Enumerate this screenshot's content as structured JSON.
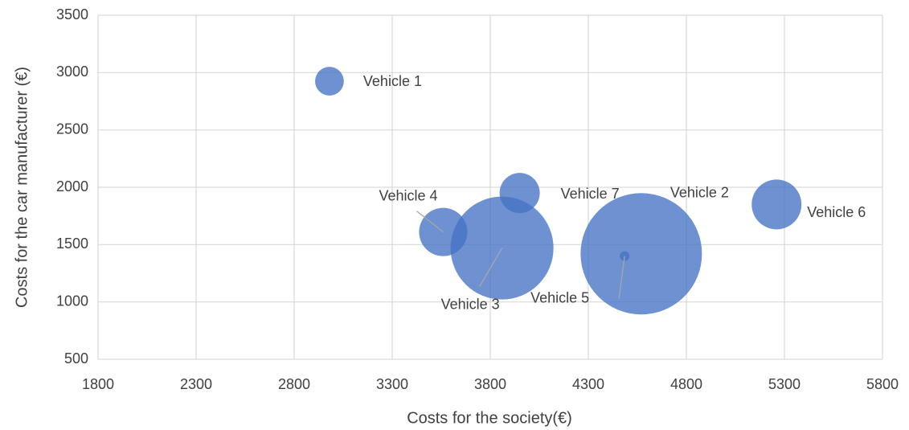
{
  "chart_data": {
    "type": "bubble",
    "x_label": "Costs for the society(€)",
    "y_label": "Costs for the car manufacturer (€)",
    "labels": [
      "Vehicle 1",
      "Vehicle 2",
      "Vehicle 3",
      "Vehicle 4",
      "Vehicle 5",
      "Vehicle 6",
      "Vehicle 7"
    ],
    "x": [
      2980,
      4570,
      3860,
      3560,
      4485,
      5260,
      3950
    ],
    "values": [
      2925,
      1420,
      1470,
      1610,
      1400,
      1850,
      1950
    ],
    "sizes": [
      3.2,
      57,
      41,
      9,
      0.36,
      9.6,
      6.25
    ],
    "color": "#4472c4",
    "xlim": [
      1800,
      5800
    ],
    "xticks": [
      1800,
      2300,
      2800,
      3300,
      3800,
      4300,
      4800,
      5300,
      5800
    ],
    "ylim": [
      500,
      3500
    ],
    "yticks": [
      500,
      1000,
      1500,
      2000,
      2500,
      3000,
      3500
    ],
    "grid": true
  }
}
